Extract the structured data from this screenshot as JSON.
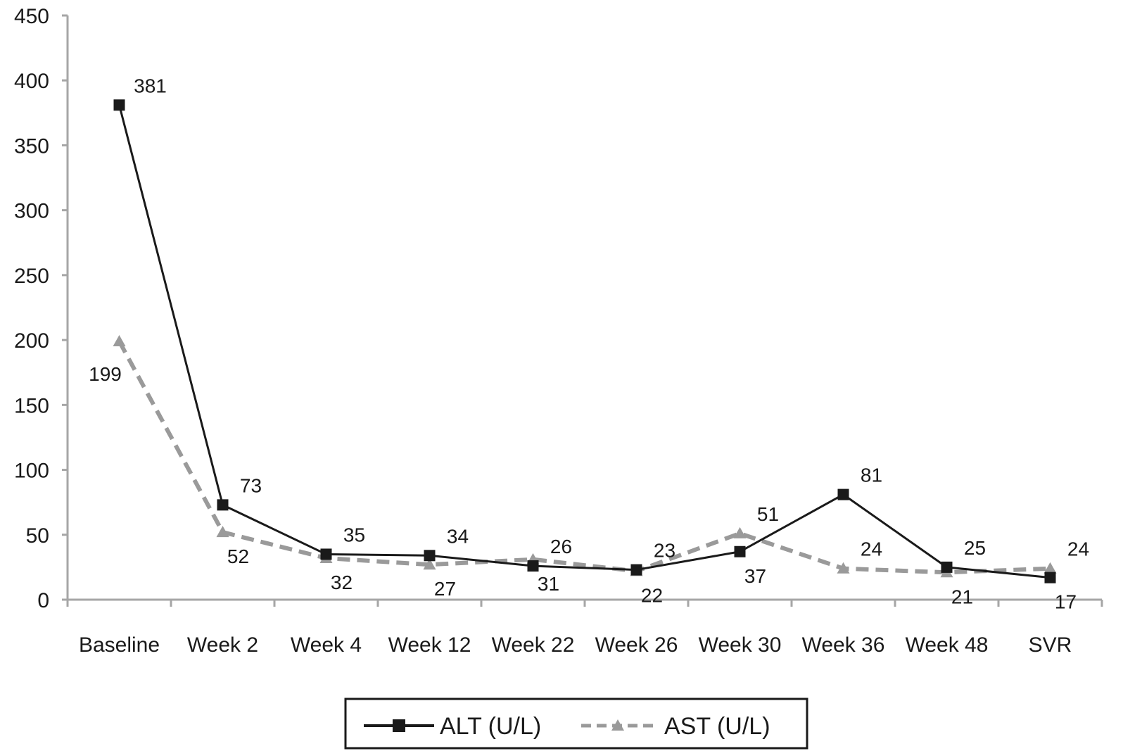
{
  "chart_data": {
    "type": "line",
    "categories": [
      "Baseline",
      "Week 2",
      "Week 4",
      "Week 12",
      "Week 22",
      "Week 26",
      "Week 30",
      "Week 36",
      "Week 48",
      "SVR"
    ],
    "series": [
      {
        "name": "ALT (U/L)",
        "values": [
          381,
          73,
          35,
          34,
          26,
          23,
          37,
          81,
          25,
          17
        ],
        "labels": [
          "381",
          "73",
          "35",
          "34",
          "26",
          "23",
          "37",
          "81",
          "25",
          "17"
        ],
        "label_side": [
          "above",
          "above",
          "above",
          "above",
          "above",
          "above",
          "below",
          "above",
          "above",
          "below"
        ],
        "color": "#1a1a1a",
        "style": "solid",
        "marker": "square"
      },
      {
        "name": "AST (U/L)",
        "values": [
          199,
          52,
          32,
          27,
          31,
          22,
          51,
          24,
          21,
          24
        ],
        "labels": [
          "199",
          "52",
          "32",
          "27",
          "31",
          "22",
          "51",
          "24",
          "21",
          "24"
        ],
        "label_side": [
          "below",
          "below",
          "below",
          "below",
          "below",
          "below",
          "above",
          "above",
          "below",
          "above"
        ],
        "color": "#9a9a9a",
        "style": "dashed",
        "marker": "triangle"
      }
    ],
    "y_ticks": [
      "0",
      "50",
      "100",
      "150",
      "200",
      "250",
      "300",
      "350",
      "400",
      "450"
    ],
    "ylim": [
      0,
      450
    ],
    "grid": false,
    "legend_position": "bottom",
    "axis_color": "#a6a6a6"
  }
}
